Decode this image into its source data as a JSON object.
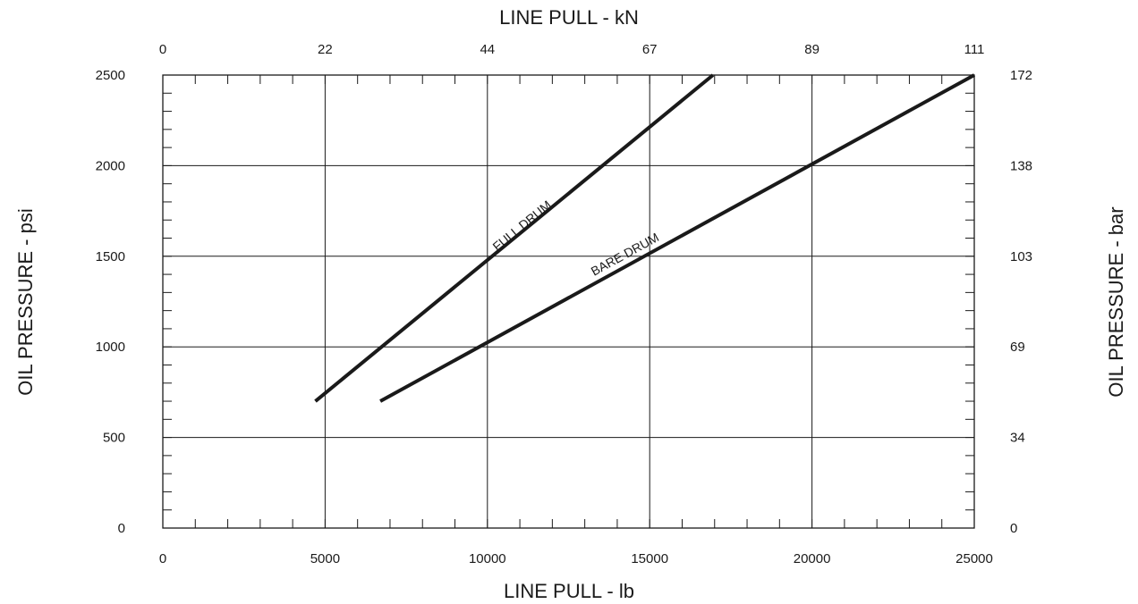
{
  "chart_data": {
    "type": "line",
    "xlabel_bottom": "LINE  PULL - lb",
    "xlabel_top": "LINE  PULL - kN",
    "ylabel_left": "OIL PRESSURE - psi",
    "ylabel_right": "OIL PRESSURE - bar",
    "xlim": [
      0,
      25000
    ],
    "ylim": [
      0,
      2500
    ],
    "x_ticks": [
      0,
      5000,
      10000,
      15000,
      20000,
      25000
    ],
    "x_tick_labels": [
      "0",
      "5000",
      "10000",
      "15000",
      "20000",
      "25000"
    ],
    "x_top_tick_labels": [
      "0",
      "22",
      "44",
      "67",
      "89",
      "111"
    ],
    "y_ticks": [
      0,
      500,
      1000,
      1500,
      2000,
      2500
    ],
    "y_tick_labels": [
      "0",
      "500",
      "1000",
      "1500",
      "2000",
      "2500"
    ],
    "y_right_tick_labels": [
      "0",
      "34",
      "69",
      "103",
      "138",
      "172"
    ],
    "x_minor_step": 1000,
    "y_minor_step": 100,
    "grid": true,
    "series": [
      {
        "name": "FULL DRUM",
        "color": "#1a1a1a",
        "points": [
          [
            4700,
            700
          ],
          [
            16950,
            2500
          ]
        ],
        "label_at": [
          11150,
          1650
        ]
      },
      {
        "name": "BARE DRUM",
        "color": "#1a1a1a",
        "points": [
          [
            6700,
            700
          ],
          [
            25000,
            2500
          ]
        ],
        "label_at": [
          14300,
          1490
        ]
      }
    ]
  }
}
